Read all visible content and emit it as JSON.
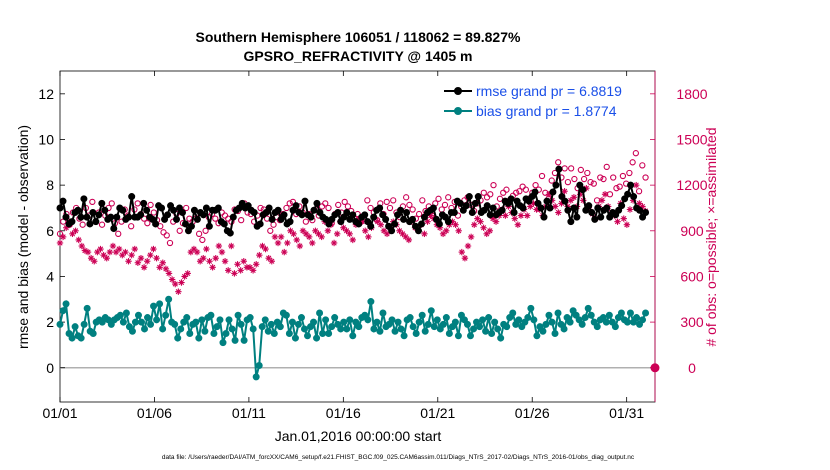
{
  "chart_data": {
    "type": "line",
    "title_line1": "Southern Hemisphere 106051 / 118062 = 89.827%",
    "title_line2": "GPSRO_REFRACTIVITY @ 1405 m",
    "xlabel": "Jan.01,2016 00:00:00 start",
    "ylabel_left": "rmse and bias (model - observation)",
    "ylabel_right": "# of obs: o=possible; ×=assimilated",
    "footer": "data file: /Users/raeder/DAI/ATM_forcXX/CAM6_setup/f.e21.FHIST_BGC.f09_025.CAM6assim.011/Diags_NTrS_2017-02/Diags_NTrS_2016-01/obs_diag_output.nc",
    "x_ticks": [
      "01/01",
      "01/06",
      "01/11",
      "01/16",
      "01/21",
      "01/26",
      "01/31"
    ],
    "x_tick_days": [
      1,
      6,
      11,
      16,
      21,
      26,
      31
    ],
    "xlim": [
      1,
      32.5
    ],
    "ylim_left": [
      -1.5,
      13
    ],
    "y_ticks_left": [
      0,
      2,
      4,
      6,
      8,
      10,
      12
    ],
    "ylim_right": [
      -225,
      1950
    ],
    "y_ticks_right": [
      0,
      300,
      600,
      900,
      1200,
      1500,
      1800
    ],
    "colors": {
      "rmse": "#000000",
      "bias": "#008080",
      "obs": "#cc0055",
      "legend_text": "#1a4fe8",
      "zero_line": "#b0b0b0"
    },
    "series": [
      {
        "name": "rmse grand pr = 6.8819",
        "axis": "left",
        "values": [
          7.0,
          7.3,
          6.6,
          6.3,
          6.4,
          6.8,
          6.9,
          6.6,
          7.4,
          6.6,
          6.3,
          6.8,
          6.4,
          6.7,
          7.2,
          6.9,
          6.5,
          6.6,
          6.1,
          6.6,
          7.0,
          6.9,
          6.5,
          6.6,
          7.5,
          6.6,
          6.6,
          6.7,
          7.2,
          6.9,
          6.6,
          6.5,
          6.3,
          7.1,
          7.0,
          6.5,
          6.7,
          7.1,
          6.9,
          6.5,
          7.0,
          6.8,
          6.3,
          6.0,
          6.2,
          6.9,
          6.5,
          6.8,
          6.7,
          7.0,
          6.2,
          6.9,
          6.9,
          7.0,
          6.4,
          6.3,
          6.0,
          5.9,
          6.6,
          6.9,
          7.0,
          7.2,
          7.0,
          7.1,
          6.9,
          6.8,
          6.2,
          6.3,
          6.7,
          6.8,
          7.0,
          6.5,
          6.8,
          6.9,
          6.5,
          6.7,
          6.3,
          6.4,
          6.9,
          7.1,
          6.8,
          6.7,
          7.3,
          6.7,
          6.6,
          6.9,
          7.2,
          6.8,
          6.6,
          6.5,
          6.3,
          6.5,
          6.7,
          6.8,
          6.4,
          6.6,
          6.8,
          6.5,
          6.7,
          6.4,
          6.3,
          6.6,
          6.7,
          6.4,
          6.2,
          6.6,
          6.9,
          7.0,
          6.7,
          6.5,
          6.2,
          6.0,
          6.3,
          6.7,
          6.9,
          6.5,
          6.8,
          6.4,
          6.5,
          6.2,
          6.0,
          6.3,
          6.6,
          6.8,
          6.9,
          7.0,
          6.5,
          6.3,
          6.7,
          6.6,
          6.4,
          6.8,
          6.8,
          7.3,
          7.2,
          6.9,
          7.1,
          7.5,
          6.8,
          7.2,
          7.5,
          6.8,
          6.9,
          7.1,
          6.7,
          7.0,
          6.7,
          6.8,
          6.9,
          7.3,
          7.2,
          7.4,
          6.8,
          7.3,
          7.1,
          7.0,
          7.4,
          7.3,
          7.5,
          7.7,
          7.2,
          7.0,
          6.6,
          7.3,
          7.0,
          7.7,
          8.0,
          8.7,
          7.5,
          7.3,
          6.9,
          6.4,
          7.0,
          6.6,
          8.0,
          7.8,
          6.9,
          7.1,
          6.8,
          6.5,
          7.0,
          6.6,
          6.9,
          7.0,
          6.6,
          6.8,
          6.7,
          6.9,
          7.1,
          7.4,
          7.6,
          8.0,
          7.5,
          7.0,
          6.9,
          6.6,
          6.8
        ]
      },
      {
        "name": "bias grand pr = 1.8774",
        "axis": "left",
        "values": [
          1.9,
          2.5,
          2.8,
          1.5,
          1.3,
          1.8,
          1.4,
          1.3,
          1.9,
          2.6,
          1.6,
          1.5,
          2.0,
          2.1,
          2.0,
          2.2,
          2.1,
          1.9,
          2.1,
          2.2,
          2.3,
          2.0,
          2.4,
          1.8,
          1.6,
          2.0,
          2.3,
          2.0,
          1.7,
          2.2,
          1.9,
          2.7,
          2.1,
          2.8,
          1.7,
          2.3,
          3.0,
          2.0,
          1.9,
          1.3,
          1.7,
          2.0,
          2.2,
          1.5,
          1.9,
          2.0,
          1.3,
          2.1,
          1.6,
          2.2,
          2.3,
          1.5,
          1.8,
          2.1,
          1.1,
          1.5,
          2.1,
          1.7,
          1.2,
          2.3,
          1.9,
          1.2,
          2.1,
          2.2,
          1.7,
          -0.4,
          0.1,
          1.8,
          2.1,
          1.6,
          1.9,
          1.5,
          2.0,
          1.8,
          2.4,
          2.3,
          1.5,
          2.0,
          1.3,
          1.9,
          2.2,
          1.7,
          1.4,
          1.8,
          2.0,
          1.3,
          2.4,
          1.5,
          2.1,
          1.5,
          1.8,
          2.2,
          1.9,
          1.7,
          2.0,
          1.7,
          2.1,
          1.4,
          2.0,
          1.8,
          2.2,
          2.3,
          2.1,
          2.9,
          1.7,
          2.0,
          1.6,
          2.4,
          1.8,
          1.9,
          2.1,
          1.6,
          2.0,
          1.7,
          1.4,
          2.1,
          2.2,
          1.8,
          1.5,
          2.0,
          2.3,
          1.6,
          1.9,
          2.5,
          1.8,
          2.1,
          1.7,
          1.9,
          2.2,
          1.5,
          1.8,
          2.0,
          1.4,
          2.3,
          2.1,
          1.9,
          1.4,
          1.7,
          2.0,
          1.8,
          2.1,
          1.6,
          2.2,
          1.5,
          2.0,
          1.7,
          1.3,
          1.9,
          1.8,
          2.2,
          2.4,
          1.9,
          2.1,
          1.8,
          2.0,
          2.2,
          2.6,
          2.1,
          1.4,
          1.8,
          1.6,
          1.9,
          2.3,
          2.0,
          1.5,
          2.4,
          1.9,
          1.7,
          2.2,
          2.0,
          2.5,
          2.3,
          2.1,
          1.9,
          2.2,
          2.6,
          2.3,
          2.0,
          1.8,
          2.1,
          2.2,
          2.0,
          2.3,
          2.0,
          1.8,
          2.2,
          2.4,
          2.1,
          2.0,
          2.4,
          2.0,
          2.2,
          1.9,
          2.1,
          2.4
        ]
      },
      {
        "name": "obs possible",
        "axis": "right",
        "marker": "circle",
        "values": [
          880,
          960,
          1010,
          940,
          1020,
          1050,
          980,
          940,
          1050,
          1000,
          1090,
          960,
          1020,
          940,
          1000,
          1050,
          1080,
          950,
          880,
          960,
          1040,
          1000,
          930,
          1040,
          1080,
          1010,
          980,
          950,
          1070,
          1020,
          970,
          930,
          890,
          870,
          820,
          960,
          1010,
          900,
          950,
          1050,
          980,
          960,
          1010,
          880,
          840,
          900,
          990,
          1010,
          980,
          950,
          1020,
          1000,
          980,
          960,
          1040,
          1030,
          970,
          1080,
          1020,
          1010,
          960,
          1000,
          1050,
          1040,
          980,
          900,
          940,
          990,
          970,
          1010,
          1050,
          1080,
          1090,
          1010,
          1060,
          1020,
          960,
          1010,
          970,
          1040,
          1000,
          1060,
          1080,
          1050,
          950,
          1010,
          1070,
          1020,
          1090,
          1060,
          1030,
          980,
          1010,
          960,
          990,
          1100,
          1050,
          1020,
          970,
          1080,
          1010,
          1090,
          1050,
          1100,
          1020,
          990,
          1060,
          1120,
          1070,
          1040,
          980,
          1010,
          1100,
          1030,
          1060,
          1000,
          1080,
          1110,
          1040,
          1070,
          1120,
          1050,
          1090,
          1000,
          1060,
          1100,
          1120,
          1070,
          1030,
          1080,
          1100,
          1150,
          1120,
          1140,
          1200,
          1060,
          1110,
          1150,
          1170,
          1100,
          1130,
          1150,
          1160,
          1190,
          1170,
          1110,
          1150,
          1200,
          1170,
          1260,
          1150,
          1110,
          1230,
          1280,
          1350,
          1250,
          1310,
          1220,
          1310,
          1240,
          1180,
          1300,
          1240,
          1280,
          1220,
          1210,
          1100,
          1250,
          1240,
          1320,
          1140,
          1250,
          1180,
          1190,
          1260,
          1210,
          1280,
          1350,
          1410,
          1160,
          1330,
          1250
        ]
      },
      {
        "name": "obs assimilated",
        "axis": "right",
        "marker": "star",
        "values": [
          820,
          860,
          920,
          960,
          880,
          900,
          840,
          800,
          770,
          760,
          720,
          700,
          760,
          780,
          740,
          720,
          760,
          800,
          760,
          780,
          740,
          760,
          700,
          740,
          780,
          690,
          720,
          660,
          700,
          740,
          780,
          720,
          660,
          690,
          650,
          620,
          580,
          550,
          500,
          560,
          600,
          620,
          760,
          780,
          760,
          700,
          720,
          780,
          700,
          660,
          720,
          800,
          760,
          700,
          640,
          800,
          620,
          680,
          640,
          700,
          660,
          660,
          640,
          680,
          740,
          800,
          780,
          720,
          700,
          860,
          820,
          860,
          760,
          820,
          900,
          880,
          840,
          800,
          900,
          880,
          860,
          820,
          900,
          880,
          860,
          960,
          900,
          940,
          820,
          880,
          960,
          920,
          900,
          880,
          840,
          940,
          980,
          960,
          900,
          860,
          920,
          980,
          960,
          940,
          900,
          880,
          920,
          960,
          940,
          900,
          880,
          860,
          840,
          960,
          920,
          900,
          940,
          880,
          960,
          1000,
          980,
          940,
          920,
          880,
          900,
          940,
          960,
          940,
          900,
          760,
          720,
          800,
          860,
          940,
          980,
          960,
          920,
          880,
          900,
          980,
          960,
          1000,
          1040,
          1000,
          1060,
          1020,
          980,
          940,
          1000,
          1040,
          1000,
          1060,
          1080,
          1040,
          1040,
          1000,
          1060,
          1140,
          1100,
          1060,
          1020,
          1080,
          1160,
          1060,
          1100,
          1120,
          1060,
          1140,
          1100,
          1180,
          1040,
          1010,
          980,
          1060,
          1100,
          1140,
          1060,
          1020,
          1000,
          960,
          1080,
          980,
          940,
          1040,
          1100,
          1200,
          1080,
          1060,
          1030
        ]
      }
    ],
    "right_edge_marker_value": 0
  }
}
